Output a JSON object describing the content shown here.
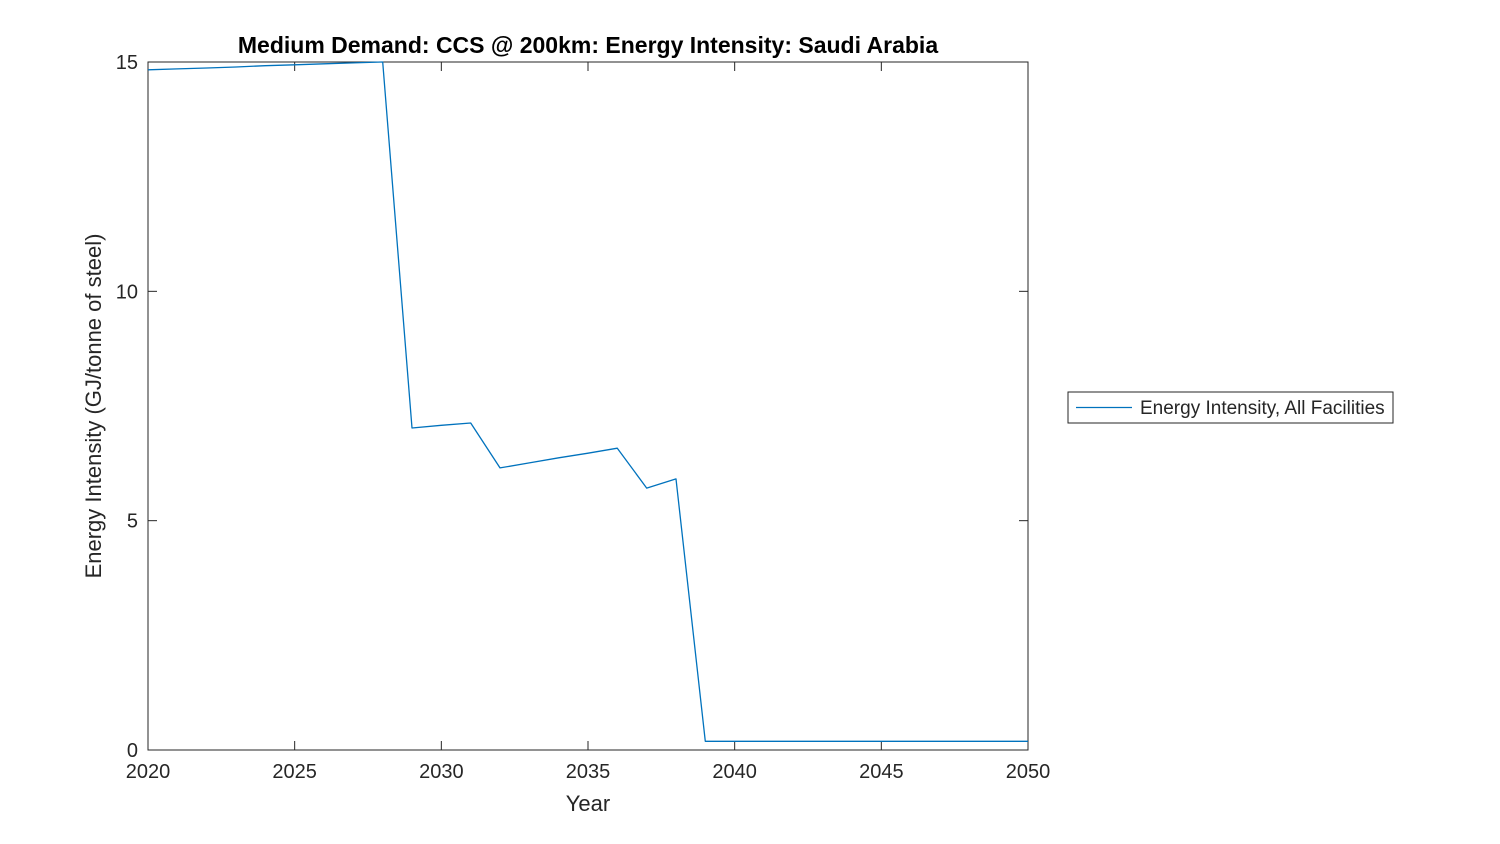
{
  "figure": {
    "background": "#ffffff",
    "axis_color": "#262626",
    "line_color": "#0072BD"
  },
  "chart_data": {
    "type": "line",
    "title": "Medium Demand: CCS @ 200km: Energy Intensity: Saudi Arabia",
    "xlabel": "Year",
    "ylabel": "Energy Intensity (GJ/tonne of steel)",
    "xlim": [
      2020,
      2050
    ],
    "ylim": [
      0,
      15
    ],
    "x_ticks": [
      2020,
      2025,
      2030,
      2035,
      2040,
      2045,
      2050
    ],
    "y_ticks": [
      0,
      5,
      10,
      15
    ],
    "grid": false,
    "box": true,
    "tick_direction": "in",
    "legend": {
      "position": "outside-right",
      "entries": [
        {
          "label": "Energy Intensity, All Facilities",
          "color": "#0072BD"
        }
      ]
    },
    "series": [
      {
        "name": "Energy Intensity, All Facilities",
        "color": "#0072BD",
        "x": [
          2020,
          2021,
          2022,
          2023,
          2024,
          2025,
          2026,
          2027,
          2028,
          2029,
          2030,
          2031,
          2032,
          2033,
          2034,
          2035,
          2036,
          2037,
          2038,
          2039,
          2040,
          2041,
          2042,
          2043,
          2044,
          2045,
          2046,
          2047,
          2048,
          2049,
          2050
        ],
        "y": [
          14.83,
          14.85,
          14.87,
          14.89,
          14.92,
          14.94,
          14.96,
          14.98,
          15.0,
          7.02,
          7.08,
          7.13,
          6.15,
          6.26,
          6.37,
          6.47,
          6.58,
          5.71,
          5.91,
          0.19,
          0.19,
          0.19,
          0.19,
          0.19,
          0.19,
          0.19,
          0.19,
          0.19,
          0.19,
          0.19,
          0.19
        ]
      }
    ]
  }
}
